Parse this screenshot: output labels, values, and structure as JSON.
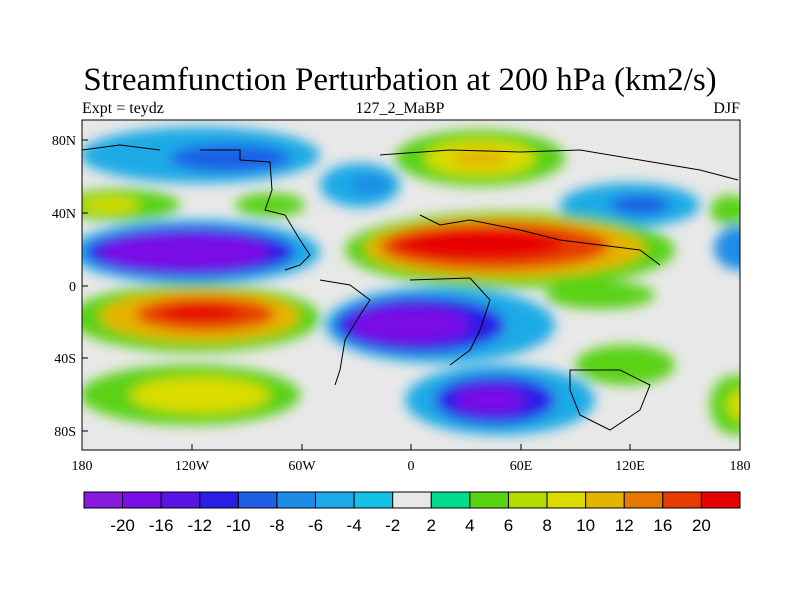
{
  "title": "Streamfunction Perturbation at 200 hPa (km2/s)",
  "subtitle_left": "Expt = teydz",
  "subtitle_center": "127_2_MaBP",
  "subtitle_right": "DJF",
  "lat_labels": [
    "80N",
    "40N",
    "0",
    "40S",
    "80S"
  ],
  "lon_labels": [
    "180",
    "120W",
    "60W",
    "0",
    "60E",
    "120E",
    "180"
  ],
  "colorbar": {
    "labels": [
      "-20",
      "-16",
      "-12",
      "-10",
      "-8",
      "-6",
      "-4",
      "-2",
      "2",
      "4",
      "6",
      "8",
      "10",
      "12",
      "16",
      "20"
    ],
    "colors": [
      "#8a19e0",
      "#7a0fe6",
      "#5a14e6",
      "#2a1ee6",
      "#1e5fe6",
      "#1e8ce6",
      "#1eaae6",
      "#14c0e6",
      "#e8e8e8",
      "#00dc8c",
      "#5ad214",
      "#b4dc00",
      "#dcdc00",
      "#e6b400",
      "#e67800",
      "#e63c00",
      "#e60000"
    ]
  },
  "colors": {
    "land_outline": "#000000",
    "neutral": "#e8e8e8"
  }
}
